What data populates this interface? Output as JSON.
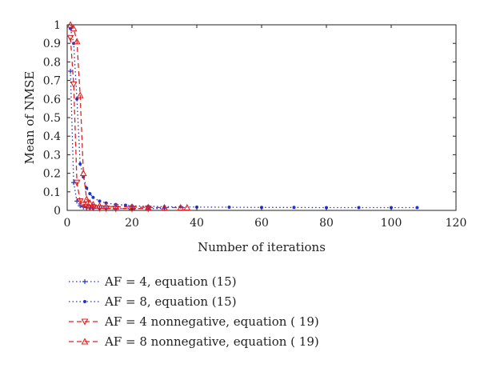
{
  "chart_data": {
    "type": "line",
    "title": "",
    "xlabel": "Number of iterations",
    "ylabel": "Mean of NMSE",
    "xlim": [
      0,
      120
    ],
    "ylim": [
      0,
      1
    ],
    "xticks": [
      0,
      20,
      40,
      60,
      80,
      100,
      120
    ],
    "yticks": [
      0,
      0.1,
      0.2,
      0.3,
      0.4,
      0.5,
      0.6,
      0.7,
      0.8,
      0.9,
      1
    ],
    "grid": false,
    "legend_position": "below",
    "series": [
      {
        "name": "AF = 4, equation (15)",
        "color": "#2233cc",
        "line_style": "dotted",
        "marker": "plus",
        "x": [
          1,
          2,
          3,
          4,
          5,
          6,
          7,
          8,
          10,
          12,
          15,
          20,
          25,
          30
        ],
        "y": [
          0.75,
          0.15,
          0.05,
          0.025,
          0.018,
          0.015,
          0.013,
          0.012,
          0.011,
          0.011,
          0.01,
          0.01,
          0.01,
          0.01
        ]
      },
      {
        "name": "AF = 8, equation (15)",
        "color": "#2233cc",
        "line_style": "dotted",
        "marker": "dot",
        "x": [
          1,
          2,
          3,
          4,
          5,
          6,
          7,
          8,
          10,
          12,
          15,
          18,
          20,
          25,
          30,
          35,
          40,
          50,
          60,
          70,
          80,
          90,
          100,
          108
        ],
        "y": [
          0.98,
          0.9,
          0.6,
          0.25,
          0.18,
          0.12,
          0.09,
          0.07,
          0.05,
          0.04,
          0.032,
          0.028,
          0.025,
          0.022,
          0.02,
          0.019,
          0.018,
          0.017,
          0.016,
          0.016,
          0.015,
          0.015,
          0.015,
          0.015
        ]
      },
      {
        "name": "AF = 4 nonnegative, equation ( 19)",
        "color": "#e02020",
        "line_style": "dashed",
        "marker": "triangle-down",
        "x": [
          1,
          2,
          3,
          4,
          5,
          6,
          7,
          8,
          10,
          12,
          15,
          20,
          25
        ],
        "y": [
          0.93,
          0.68,
          0.15,
          0.05,
          0.03,
          0.02,
          0.016,
          0.014,
          0.012,
          0.011,
          0.01,
          0.01,
          0.01
        ]
      },
      {
        "name": "AF = 8 nonnegative, equation ( 19)",
        "color": "#e02020",
        "line_style": "dashed",
        "marker": "triangle-up",
        "x": [
          1,
          2,
          3,
          4,
          5,
          6,
          7,
          8,
          10,
          12,
          15,
          20,
          25,
          30,
          35,
          37
        ],
        "y": [
          1.0,
          0.98,
          0.91,
          0.62,
          0.2,
          0.06,
          0.04,
          0.032,
          0.025,
          0.022,
          0.02,
          0.018,
          0.016,
          0.015,
          0.015,
          0.015
        ]
      }
    ]
  }
}
